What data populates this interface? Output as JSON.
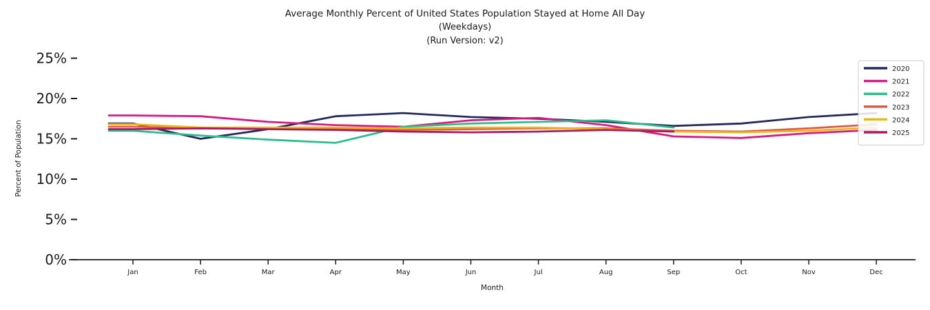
{
  "title": {
    "line1": "Average Monthly Percent of United States Population Stayed at Home All Day",
    "line2": "(Weekdays)",
    "line3": "(Run Version: v2)"
  },
  "chart_data": {
    "type": "line",
    "title": "Average Monthly Percent of United States Population Stayed at Home All Day (Weekdays) (Run Version: v2)",
    "xlabel": "Month",
    "ylabel": "Percent of Population",
    "categories": [
      "Jan",
      "Feb",
      "Mar",
      "Apr",
      "May",
      "Jun",
      "Jul",
      "Aug",
      "Sep",
      "Oct",
      "Nov",
      "Dec"
    ],
    "y_tick_labels": [
      "0%",
      "5%",
      "10%",
      "15%",
      "20%",
      "25%"
    ],
    "y_tick_values": [
      0,
      5,
      10,
      15,
      20,
      25
    ],
    "ylim": [
      0,
      26
    ],
    "grid": "off",
    "legend_position": "upper right",
    "series": [
      {
        "name": "2020",
        "color": "#252a5c",
        "values": [
          16.9,
          15.0,
          16.2,
          17.8,
          18.2,
          17.7,
          17.5,
          17.1,
          16.6,
          16.9,
          17.7,
          18.2
        ]
      },
      {
        "name": "2021",
        "color": "#d61a82",
        "values": [
          17.9,
          17.8,
          17.1,
          16.7,
          16.5,
          17.3,
          17.6,
          16.7,
          15.3,
          15.1,
          15.7,
          16.1
        ]
      },
      {
        "name": "2022",
        "color": "#2fbc8d",
        "values": [
          16.0,
          15.4,
          14.9,
          14.5,
          16.5,
          16.9,
          17.1,
          17.3,
          16.4,
          null,
          null,
          null
        ]
      },
      {
        "name": "2023",
        "color": "#df5a4c",
        "values": [
          16.5,
          16.3,
          16.3,
          16.2,
          16.1,
          16.2,
          16.3,
          16.3,
          16.0,
          15.9,
          16.3,
          16.8
        ]
      },
      {
        "name": "2024",
        "color": "#e9b818",
        "values": [
          16.8,
          16.4,
          16.4,
          16.4,
          16.3,
          16.4,
          16.4,
          16.2,
          15.9,
          15.8,
          16.0,
          16.4
        ]
      },
      {
        "name": "2025",
        "color": "#a91a5e",
        "values": [
          16.2,
          16.3,
          16.2,
          16.1,
          15.9,
          15.8,
          15.9,
          16.1,
          15.9,
          null,
          null,
          null
        ]
      }
    ]
  }
}
